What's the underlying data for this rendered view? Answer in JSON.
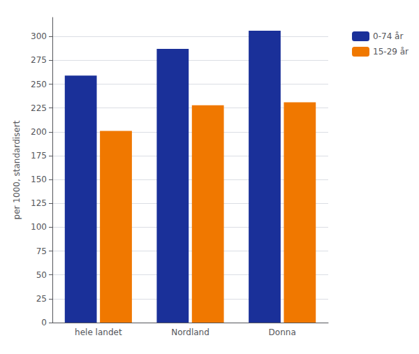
{
  "chart_data": {
    "type": "bar",
    "categories": [
      "hele landet",
      "Nordland",
      "Donna"
    ],
    "series": [
      {
        "name": "0-74 år",
        "color": "#1a3099",
        "values": [
          259,
          287,
          306
        ]
      },
      {
        "name": "15-29 år",
        "color": "#f07800",
        "values": [
          201,
          228,
          231
        ]
      }
    ],
    "ylabel": "per 1000, standardisert",
    "ylim": [
      0,
      320
    ],
    "yticks": [
      0,
      25,
      50,
      75,
      100,
      125,
      150,
      175,
      200,
      225,
      250,
      275,
      300
    ],
    "grid": true,
    "legend": "upper right"
  }
}
